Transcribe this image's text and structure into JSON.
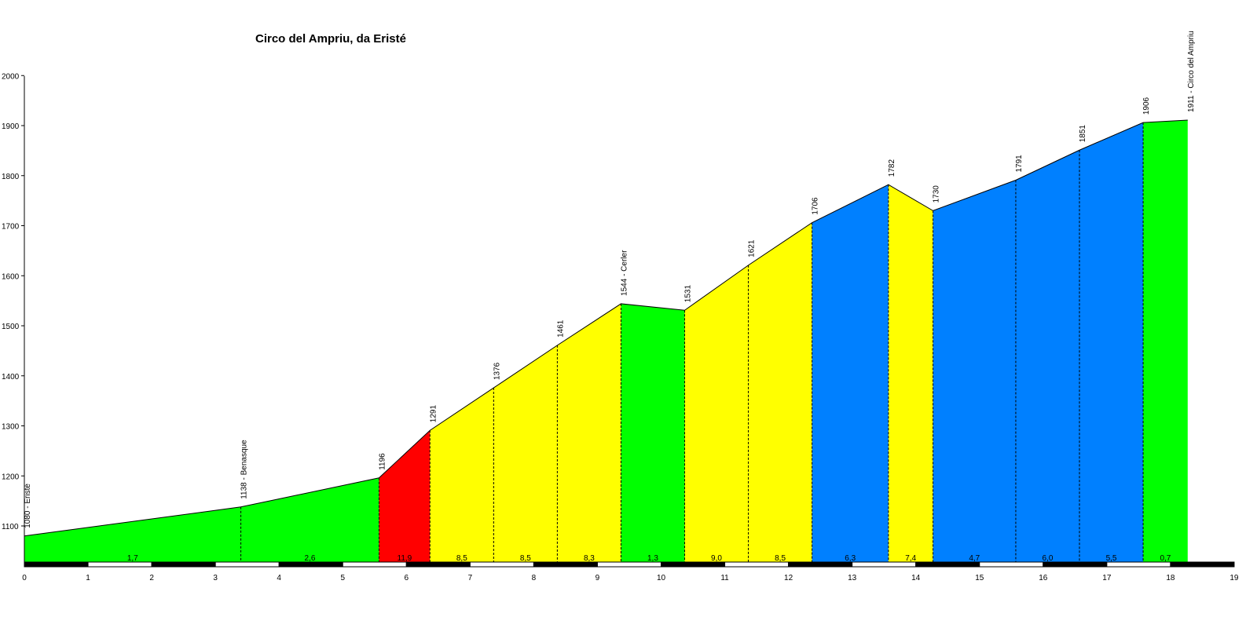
{
  "chart_data": {
    "type": "area",
    "title": "Circo del Ampriu, da Eristé",
    "xlabel": "",
    "ylabel": "",
    "xlim": [
      0,
      19
    ],
    "ylim": [
      1020,
      2000
    ],
    "x_ticks": [
      "0",
      "1",
      "2",
      "3",
      "4",
      "5",
      "6",
      "7",
      "8",
      "9",
      "10",
      "11",
      "12",
      "13",
      "14",
      "15",
      "16",
      "17",
      "18",
      "19"
    ],
    "y_ticks": [
      "1100",
      "1200",
      "1300",
      "1400",
      "1500",
      "1600",
      "1700",
      "1800",
      "1900",
      "2000"
    ],
    "points": [
      {
        "km": 0,
        "alt": 1080,
        "label": "1080 - Eristé"
      },
      {
        "km": 3.4,
        "alt": 1138,
        "label": "1138 - Benasque"
      },
      {
        "km": 5.57,
        "alt": 1196,
        "label": "1196"
      },
      {
        "km": 6.37,
        "alt": 1291,
        "label": "1291"
      },
      {
        "km": 7.37,
        "alt": 1376,
        "label": "1376"
      },
      {
        "km": 8.37,
        "alt": 1461,
        "label": "1461"
      },
      {
        "km": 9.37,
        "alt": 1544,
        "label": "1544 - Cerler"
      },
      {
        "km": 10.37,
        "alt": 1531,
        "label": "1531"
      },
      {
        "km": 11.37,
        "alt": 1621,
        "label": "1621"
      },
      {
        "km": 12.37,
        "alt": 1706,
        "label": "1706"
      },
      {
        "km": 13.57,
        "alt": 1782,
        "label": "1782"
      },
      {
        "km": 14.27,
        "alt": 1730,
        "label": "1730"
      },
      {
        "km": 15.57,
        "alt": 1791,
        "label": "1791"
      },
      {
        "km": 16.57,
        "alt": 1851,
        "label": "1851"
      },
      {
        "km": 17.57,
        "alt": 1906,
        "label": "1906"
      },
      {
        "km": 18.27,
        "alt": 1911,
        "label": "1911 - Circo del Ampriu"
      }
    ],
    "segments": [
      {
        "gradient": "1,7",
        "color": "#00ff00"
      },
      {
        "gradient": "2,6",
        "color": "#00ff00"
      },
      {
        "gradient": "11,9",
        "color": "#ff0000"
      },
      {
        "gradient": "8,5",
        "color": "#ffff00"
      },
      {
        "gradient": "8,5",
        "color": "#ffff00"
      },
      {
        "gradient": "8,3",
        "color": "#ffff00"
      },
      {
        "gradient": "1,3",
        "color": "#00ff00"
      },
      {
        "gradient": "9,0",
        "color": "#ffff00"
      },
      {
        "gradient": "8,5",
        "color": "#ffff00"
      },
      {
        "gradient": "6,3",
        "color": "#0080ff"
      },
      {
        "gradient": "7,4",
        "color": "#ffff00"
      },
      {
        "gradient": "4,7",
        "color": "#0080ff"
      },
      {
        "gradient": "6,0",
        "color": "#0080ff"
      },
      {
        "gradient": "5,5",
        "color": "#0080ff"
      },
      {
        "gradient": "0,7",
        "color": "#00ff00"
      }
    ],
    "grid": false,
    "legend": "none"
  }
}
